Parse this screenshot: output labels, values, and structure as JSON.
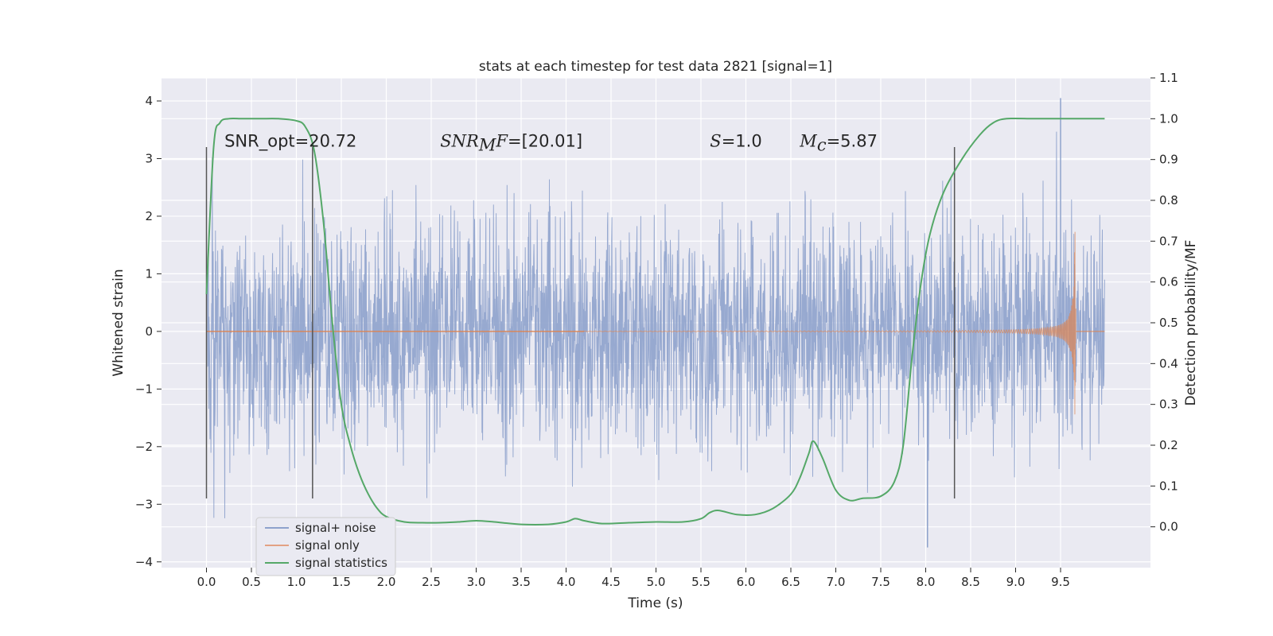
{
  "chart_data": {
    "type": "line",
    "title": "stats at each timestep for test data 2821 [signal=1]",
    "xlabel": "Time (s)",
    "ylabel": "Whitened strain",
    "y2label": "Detection probability/MF",
    "xlim": [
      -0.5,
      10.5
    ],
    "ylim": [
      -4.1,
      4.4
    ],
    "y2lim": [
      -0.1,
      1.1
    ],
    "xticks": [
      "0.0",
      "0.5",
      "1.0",
      "1.5",
      "2.0",
      "2.5",
      "3.0",
      "3.5",
      "4.0",
      "4.5",
      "5.0",
      "5.5",
      "6.0",
      "6.5",
      "7.0",
      "7.5",
      "8.0",
      "8.5",
      "9.0",
      "9.5"
    ],
    "yticks": [
      "4",
      "3",
      "2",
      "1",
      "0",
      "−1",
      "−2",
      "−3",
      "−4"
    ],
    "y2ticks": [
      "1.1",
      "1.0",
      "0.9",
      "0.8",
      "0.7",
      "0.6",
      "0.5",
      "0.4",
      "0.3",
      "0.2",
      "0.1",
      "0.0"
    ],
    "grid": true,
    "legend_position": "lower-left",
    "series": [
      {
        "name": "signal+ noise",
        "color": "#8ea2cc",
        "style": "dense noise",
        "x_range": [
          0.0,
          9.99
        ],
        "typical_amplitude": 1.0,
        "peak_values": [
          4.05,
          -3.75
        ]
      },
      {
        "name": "signal only",
        "color": "#dd8452",
        "style": "chirp",
        "x_range": [
          0.0,
          9.67
        ],
        "end_amplitude": 1.8
      },
      {
        "name": "signal statistics",
        "color": "#55a868",
        "axis": "right",
        "x": [
          0.0,
          0.08,
          0.15,
          0.25,
          0.4,
          0.6,
          0.8,
          1.0,
          1.1,
          1.2,
          1.3,
          1.4,
          1.5,
          1.6,
          1.7,
          1.8,
          1.9,
          2.0,
          2.2,
          2.4,
          2.6,
          2.8,
          3.0,
          3.2,
          3.5,
          3.8,
          4.0,
          4.1,
          4.2,
          4.4,
          4.7,
          5.0,
          5.3,
          5.5,
          5.6,
          5.7,
          5.9,
          6.1,
          6.3,
          6.5,
          6.6,
          6.7,
          6.75,
          6.85,
          7.0,
          7.15,
          7.3,
          7.5,
          7.65,
          7.75,
          7.85,
          7.95,
          8.05,
          8.2,
          8.4,
          8.6,
          8.75,
          8.9,
          9.2,
          9.5,
          9.99
        ],
        "values": [
          0.57,
          0.93,
          0.99,
          1.0,
          1.0,
          1.0,
          1.0,
          0.995,
          0.98,
          0.92,
          0.75,
          0.5,
          0.3,
          0.2,
          0.13,
          0.08,
          0.045,
          0.025,
          0.012,
          0.01,
          0.01,
          0.012,
          0.015,
          0.012,
          0.006,
          0.006,
          0.012,
          0.02,
          0.015,
          0.008,
          0.01,
          0.012,
          0.012,
          0.02,
          0.035,
          0.04,
          0.03,
          0.03,
          0.045,
          0.08,
          0.12,
          0.18,
          0.21,
          0.17,
          0.09,
          0.065,
          0.07,
          0.075,
          0.11,
          0.2,
          0.42,
          0.6,
          0.72,
          0.82,
          0.9,
          0.96,
          0.99,
          1.0,
          1.0,
          1.0,
          1.0
        ]
      }
    ],
    "vertical_lines": {
      "x": [
        0.0,
        1.18,
        8.32
      ],
      "y_from": -2.9,
      "y_to": 3.2,
      "color": "#555555"
    },
    "annotations": [
      {
        "x": 0.2,
        "y": 3.3,
        "prefix": "SNR_opt",
        "text": "=20.72"
      },
      {
        "x": 2.6,
        "y": 3.3,
        "prefix": "SNR",
        "sub": "M",
        "suffix": "F",
        "text": "=[20.01]"
      },
      {
        "x": 5.6,
        "y": 3.3,
        "prefix": "S",
        "text": "=1.0"
      },
      {
        "x": 6.6,
        "y": 3.3,
        "prefix": "M",
        "sub": "c",
        "text": "=5.87"
      }
    ]
  }
}
